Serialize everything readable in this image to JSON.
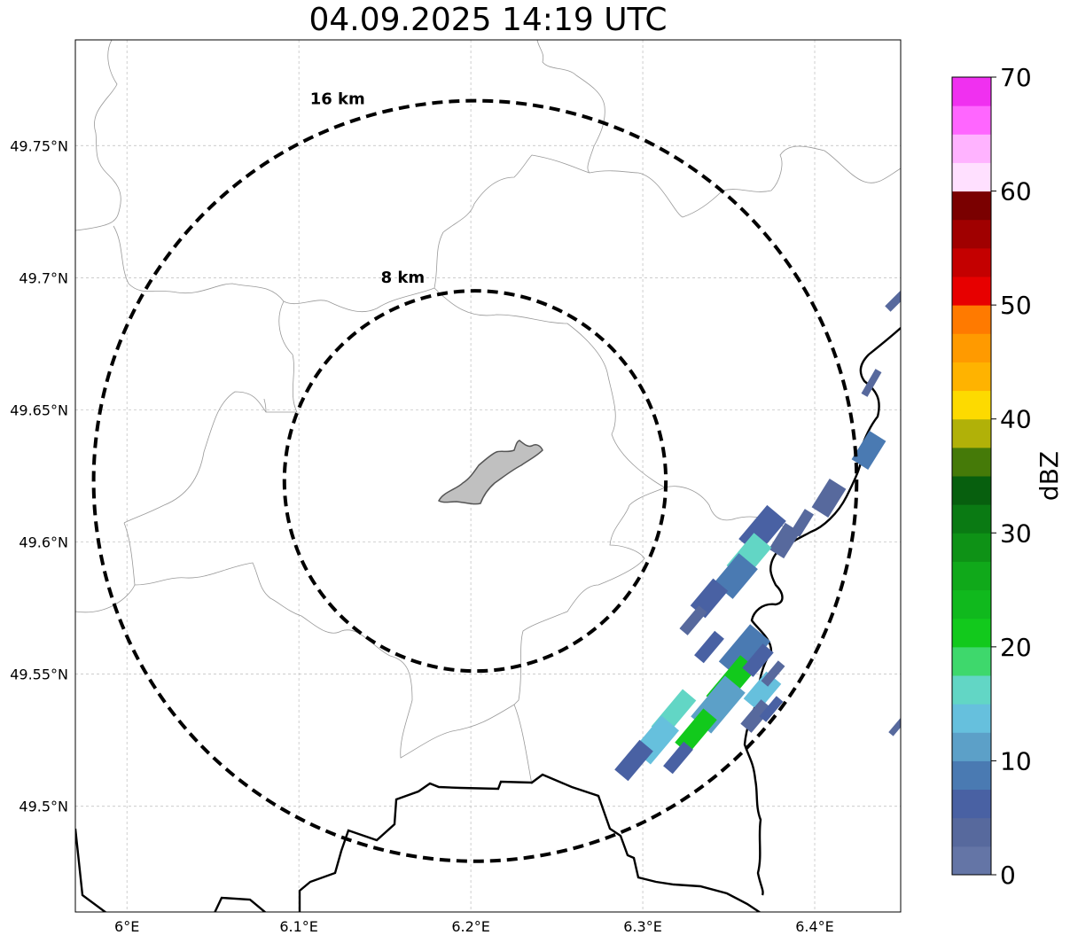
{
  "title": "04.09.2025 14:19 UTC",
  "map": {
    "lon_range": [
      5.97,
      6.45
    ],
    "lat_range": [
      49.46,
      49.79
    ],
    "center": {
      "lon": 6.2025,
      "lat": 49.6231
    },
    "rings": [
      {
        "label": "8 km",
        "radius_km": 8
      },
      {
        "label": "16 km",
        "radius_km": 16
      }
    ],
    "lon_ticks": [
      {
        "value": 6.0,
        "label": "6°E"
      },
      {
        "value": 6.1,
        "label": "6.1°E"
      },
      {
        "value": 6.2,
        "label": "6.2°E"
      },
      {
        "value": 6.3,
        "label": "6.3°E"
      },
      {
        "value": 6.4,
        "label": "6.4°E"
      }
    ],
    "lat_ticks": [
      {
        "value": 49.5,
        "label": "49.5°N"
      },
      {
        "value": 49.55,
        "label": "49.55°N"
      },
      {
        "value": 49.6,
        "label": "49.6°N"
      },
      {
        "value": 49.65,
        "label": "49.65°N"
      },
      {
        "value": 49.7,
        "label": "49.7°N"
      },
      {
        "value": 49.75,
        "label": "49.75°N"
      }
    ],
    "grid": true,
    "colors": {
      "ring": "#000000",
      "border": "#000000",
      "admin": "#999999",
      "city_fill": "#c0c0c0",
      "city_stroke": "#555555"
    }
  },
  "colorbar": {
    "label": "dBZ",
    "min": 0,
    "max": 70,
    "step": 2.5,
    "ticks": [
      {
        "value": 0,
        "label": "0"
      },
      {
        "value": 10,
        "label": "10"
      },
      {
        "value": 20,
        "label": "20"
      },
      {
        "value": 30,
        "label": "30"
      },
      {
        "value": 40,
        "label": "40"
      },
      {
        "value": 50,
        "label": "50"
      },
      {
        "value": 60,
        "label": "60"
      },
      {
        "value": 70,
        "label": "70"
      }
    ],
    "colors": [
      "#6475a6",
      "#57699d",
      "#4961a3",
      "#4a7ab2",
      "#5ca0c8",
      "#66c0dd",
      "#62d6c5",
      "#3ed86c",
      "#12c91c",
      "#10b91d",
      "#10a91a",
      "#0e9216",
      "#0a7a13",
      "#075f0e",
      "#457a08",
      "#b1b108",
      "#fdda00",
      "#ffb300",
      "#ff9a00",
      "#ff7a00",
      "#e70000",
      "#c40000",
      "#a00000",
      "#7a0000",
      "#ffe0ff",
      "#ffb3ff",
      "#ff66ff",
      "#f030f0"
    ]
  }
}
